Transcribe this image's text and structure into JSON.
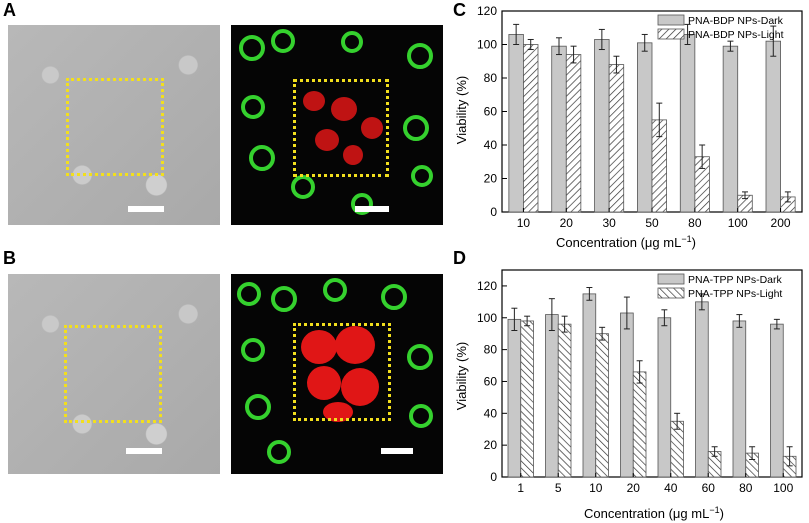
{
  "panels": {
    "a_label": "A",
    "b_label": "B",
    "c_label": "C",
    "d_label": "D"
  },
  "colors": {
    "roi": "#f2df1d",
    "green_fluor": "#35d12e",
    "red_fluor": "#e01616",
    "bar_fill": "#c8c8c8",
    "scale_bar": "#ffffff"
  },
  "chart_data": [
    {
      "panel": "C",
      "type": "bar",
      "categories": [
        "10",
        "20",
        "30",
        "50",
        "80",
        "100",
        "200"
      ],
      "series": [
        {
          "name": "PNA-BDP NPs-Dark",
          "values": [
            106,
            99,
            103,
            101,
            106,
            99,
            102
          ],
          "errors": [
            6,
            5,
            6,
            5,
            6,
            3,
            9
          ],
          "pattern": "solid"
        },
        {
          "name": "PNA-BDP NPs-Light",
          "values": [
            100,
            94,
            88,
            55,
            33,
            10,
            9
          ],
          "errors": [
            3,
            5,
            5,
            10,
            7,
            2,
            3
          ],
          "pattern": "hatched"
        }
      ],
      "xlabel": "Concentration (μg mL",
      "xlabel_sup": "−1",
      "xlabel_end": ")",
      "ylabel": "Viability (%)",
      "ylim": [
        0,
        120
      ],
      "yticks": [
        "0",
        "20",
        "40",
        "60",
        "80",
        "100",
        "120"
      ],
      "grid": false,
      "legend_position": "top-right"
    },
    {
      "panel": "D",
      "type": "bar",
      "categories": [
        "1",
        "5",
        "10",
        "20",
        "40",
        "60",
        "80",
        "100"
      ],
      "series": [
        {
          "name": "PNA-TPP NPs-Dark",
          "values": [
            99,
            102,
            115,
            103,
            100,
            110,
            98,
            96
          ],
          "errors": [
            7,
            10,
            4,
            10,
            5,
            5,
            4,
            3
          ],
          "pattern": "solid"
        },
        {
          "name": "PNA-TPP NPs-Light",
          "values": [
            98,
            96,
            90,
            66,
            35,
            16,
            15,
            13
          ],
          "errors": [
            3,
            5,
            4,
            7,
            5,
            3,
            4,
            6
          ],
          "pattern": "hatched"
        }
      ],
      "xlabel": "Concentration (μg mL",
      "xlabel_sup": "−1",
      "xlabel_end": ")",
      "ylabel": "Viability (%)",
      "ylim": [
        0,
        130
      ],
      "yticks": [
        "0",
        "20",
        "40",
        "60",
        "80",
        "100",
        "120"
      ],
      "grid": false,
      "legend_position": "top-right"
    }
  ]
}
